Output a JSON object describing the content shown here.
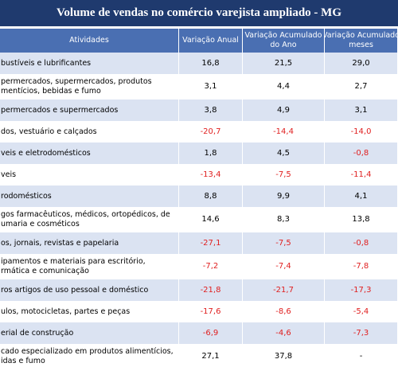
{
  "header": {
    "title": "Volume de vendas no comércio varejista ampliado - MG",
    "columns": [
      [
        "Atividades"
      ],
      [
        "Variação Anual"
      ],
      [
        "Variação Acumulado",
        "do Ano"
      ],
      [
        "Variação Acumulado",
        "meses"
      ]
    ]
  },
  "table": {
    "rows": [
      [
        [
          "bustíveis e lubrificantes"
        ],
        "16,8",
        "21,5",
        "29,0"
      ],
      [
        [
          "permercados, supermercados, produtos",
          "mentícios, bebidas e fumo"
        ],
        "3,1",
        "4,4",
        "2,7"
      ],
      [
        [
          "permercados e supermercados"
        ],
        "3,8",
        "4,9",
        "3,1"
      ],
      [
        [
          "dos, vestuário e calçados"
        ],
        "-20,7",
        "-14,4",
        "-14,0"
      ],
      [
        [
          "veis e eletrodomésticos"
        ],
        "1,8",
        "4,5",
        "-0,8"
      ],
      [
        [
          "veis"
        ],
        "-13,4",
        "-7,5",
        "-11,4"
      ],
      [
        [
          "rodomésticos"
        ],
        "8,8",
        "9,9",
        "4,1"
      ],
      [
        [
          "gos farmacêuticos, médicos, ortopédicos, de",
          "umaria e cosméticos"
        ],
        "14,6",
        "8,3",
        "13,8"
      ],
      [
        [
          "os, jornais, revistas e papelaria"
        ],
        "-27,1",
        "-7,5",
        "-0,8"
      ],
      [
        [
          "ipamentos e materiais para escritório,",
          "rmática e comunicação"
        ],
        "-7,2",
        "-7,4",
        "-7,8"
      ],
      [
        [
          "ros artigos de uso pessoal e doméstico"
        ],
        "-21,8",
        "-21,7",
        "-17,3"
      ],
      [
        [
          "ulos, motocicletas, partes e peças"
        ],
        "-17,6",
        "-8,6",
        "-5,4"
      ],
      [
        [
          "erial de construção"
        ],
        "-6,9",
        "-4,6",
        "-7,3"
      ],
      [
        [
          "cado especializado em produtos alimentícios,",
          "idas e fumo"
        ],
        "27,1",
        "37,8",
        "-"
      ]
    ]
  }
}
